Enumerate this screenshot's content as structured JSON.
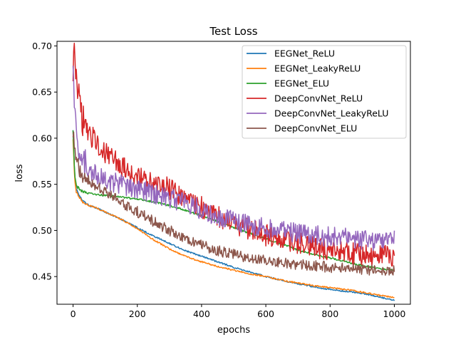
{
  "chart_data": {
    "type": "line",
    "title": "Test Loss",
    "xlabel": "epochs",
    "ylabel": "loss",
    "xlim": [
      -50,
      1050
    ],
    "ylim": [
      0.42,
      0.705
    ],
    "x_ticks": [
      0,
      200,
      400,
      600,
      800,
      1000
    ],
    "y_ticks": [
      0.45,
      0.5,
      0.55,
      0.6,
      0.65,
      0.7
    ],
    "x_tick_labels": [
      "0",
      "200",
      "400",
      "600",
      "800",
      "1000"
    ],
    "y_tick_labels": [
      "0.45",
      "0.50",
      "0.55",
      "0.60",
      "0.65",
      "0.70"
    ],
    "grid": false,
    "legend_position": "top-right",
    "x": [
      0,
      5,
      10,
      20,
      30,
      50,
      75,
      100,
      150,
      200,
      250,
      300,
      350,
      400,
      450,
      500,
      550,
      600,
      650,
      700,
      750,
      800,
      850,
      900,
      950,
      1000
    ],
    "series": [
      {
        "name": "EEGNet_ReLU",
        "color": "#1f77b4",
        "noise": 0.0008,
        "values": [
          0.61,
          0.56,
          0.545,
          0.537,
          0.532,
          0.527,
          0.524,
          0.52,
          0.512,
          0.503,
          0.494,
          0.486,
          0.478,
          0.472,
          0.466,
          0.46,
          0.455,
          0.45,
          0.446,
          0.442,
          0.439,
          0.436,
          0.434,
          0.432,
          0.428,
          0.424
        ]
      },
      {
        "name": "EEGNet_LeakyReLU",
        "color": "#ff7f0e",
        "noise": 0.0008,
        "values": [
          0.6,
          0.555,
          0.542,
          0.535,
          0.531,
          0.527,
          0.524,
          0.52,
          0.512,
          0.502,
          0.49,
          0.48,
          0.472,
          0.466,
          0.461,
          0.457,
          0.453,
          0.45,
          0.446,
          0.443,
          0.44,
          0.438,
          0.436,
          0.433,
          0.43,
          0.427
        ]
      },
      {
        "name": "EEGNet_ELU",
        "color": "#2ca02c",
        "noise": 0.001,
        "values": [
          0.61,
          0.56,
          0.548,
          0.545,
          0.542,
          0.54,
          0.539,
          0.538,
          0.536,
          0.534,
          0.531,
          0.527,
          0.522,
          0.516,
          0.51,
          0.503,
          0.497,
          0.491,
          0.485,
          0.479,
          0.474,
          0.47,
          0.466,
          0.462,
          0.459,
          0.457
        ]
      },
      {
        "name": "DeepConvNet_ReLU",
        "color": "#d62728",
        "noise": 0.012,
        "values": [
          0.68,
          0.685,
          0.66,
          0.635,
          0.62,
          0.605,
          0.595,
          0.585,
          0.57,
          0.56,
          0.552,
          0.545,
          0.535,
          0.525,
          0.515,
          0.508,
          0.501,
          0.495,
          0.49,
          0.486,
          0.482,
          0.479,
          0.476,
          0.474,
          0.473,
          0.471
        ]
      },
      {
        "name": "DeepConvNet_LeakyReLU",
        "color": "#9467bd",
        "noise": 0.011,
        "values": [
          0.695,
          0.63,
          0.6,
          0.585,
          0.575,
          0.565,
          0.56,
          0.555,
          0.55,
          0.545,
          0.54,
          0.535,
          0.53,
          0.522,
          0.516,
          0.51,
          0.506,
          0.502,
          0.499,
          0.497,
          0.495,
          0.493,
          0.492,
          0.49,
          0.489,
          0.489
        ]
      },
      {
        "name": "DeepConvNet_ELU",
        "color": "#8c564b",
        "noise": 0.006,
        "values": [
          0.61,
          0.585,
          0.575,
          0.565,
          0.56,
          0.553,
          0.547,
          0.541,
          0.53,
          0.52,
          0.51,
          0.5,
          0.491,
          0.484,
          0.478,
          0.474,
          0.47,
          0.467,
          0.465,
          0.463,
          0.462,
          0.46,
          0.459,
          0.458,
          0.457,
          0.456
        ]
      }
    ]
  }
}
